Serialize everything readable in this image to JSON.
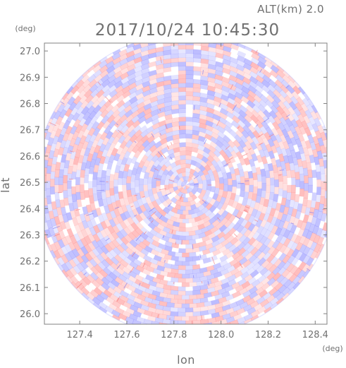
{
  "chart_data": {
    "type": "heatmap",
    "title": "2017/10/24 10:45:30",
    "subtitle": "ALT(km) 2.0",
    "xlabel": "lon",
    "ylabel": "lat",
    "x_unit": "(deg)",
    "y_unit": "(deg)",
    "xlim": [
      127.25,
      128.45
    ],
    "ylim": [
      25.96,
      27.03
    ],
    "xticks": [
      127.4,
      127.6,
      127.8,
      128.0,
      128.2,
      128.4
    ],
    "yticks": [
      26.0,
      26.1,
      26.2,
      26.3,
      26.4,
      26.5,
      26.6,
      26.7,
      26.8,
      26.9,
      27.0
    ],
    "xtick_labels": [
      "127.4",
      "127.6",
      "127.8",
      "128.0",
      "128.2",
      "128.4"
    ],
    "ytick_labels": [
      "26.0",
      "26.1",
      "26.2",
      "26.3",
      "26.4",
      "26.5",
      "26.6",
      "26.7",
      "26.8",
      "26.9",
      "27.0"
    ],
    "center": [
      127.85,
      26.49
    ],
    "grid": false,
    "colors": {
      "positive": "#ff8a8a",
      "negative": "#8a8aff",
      "neutral": "#ffffff",
      "frame": "#808080",
      "text": "#707070"
    }
  }
}
